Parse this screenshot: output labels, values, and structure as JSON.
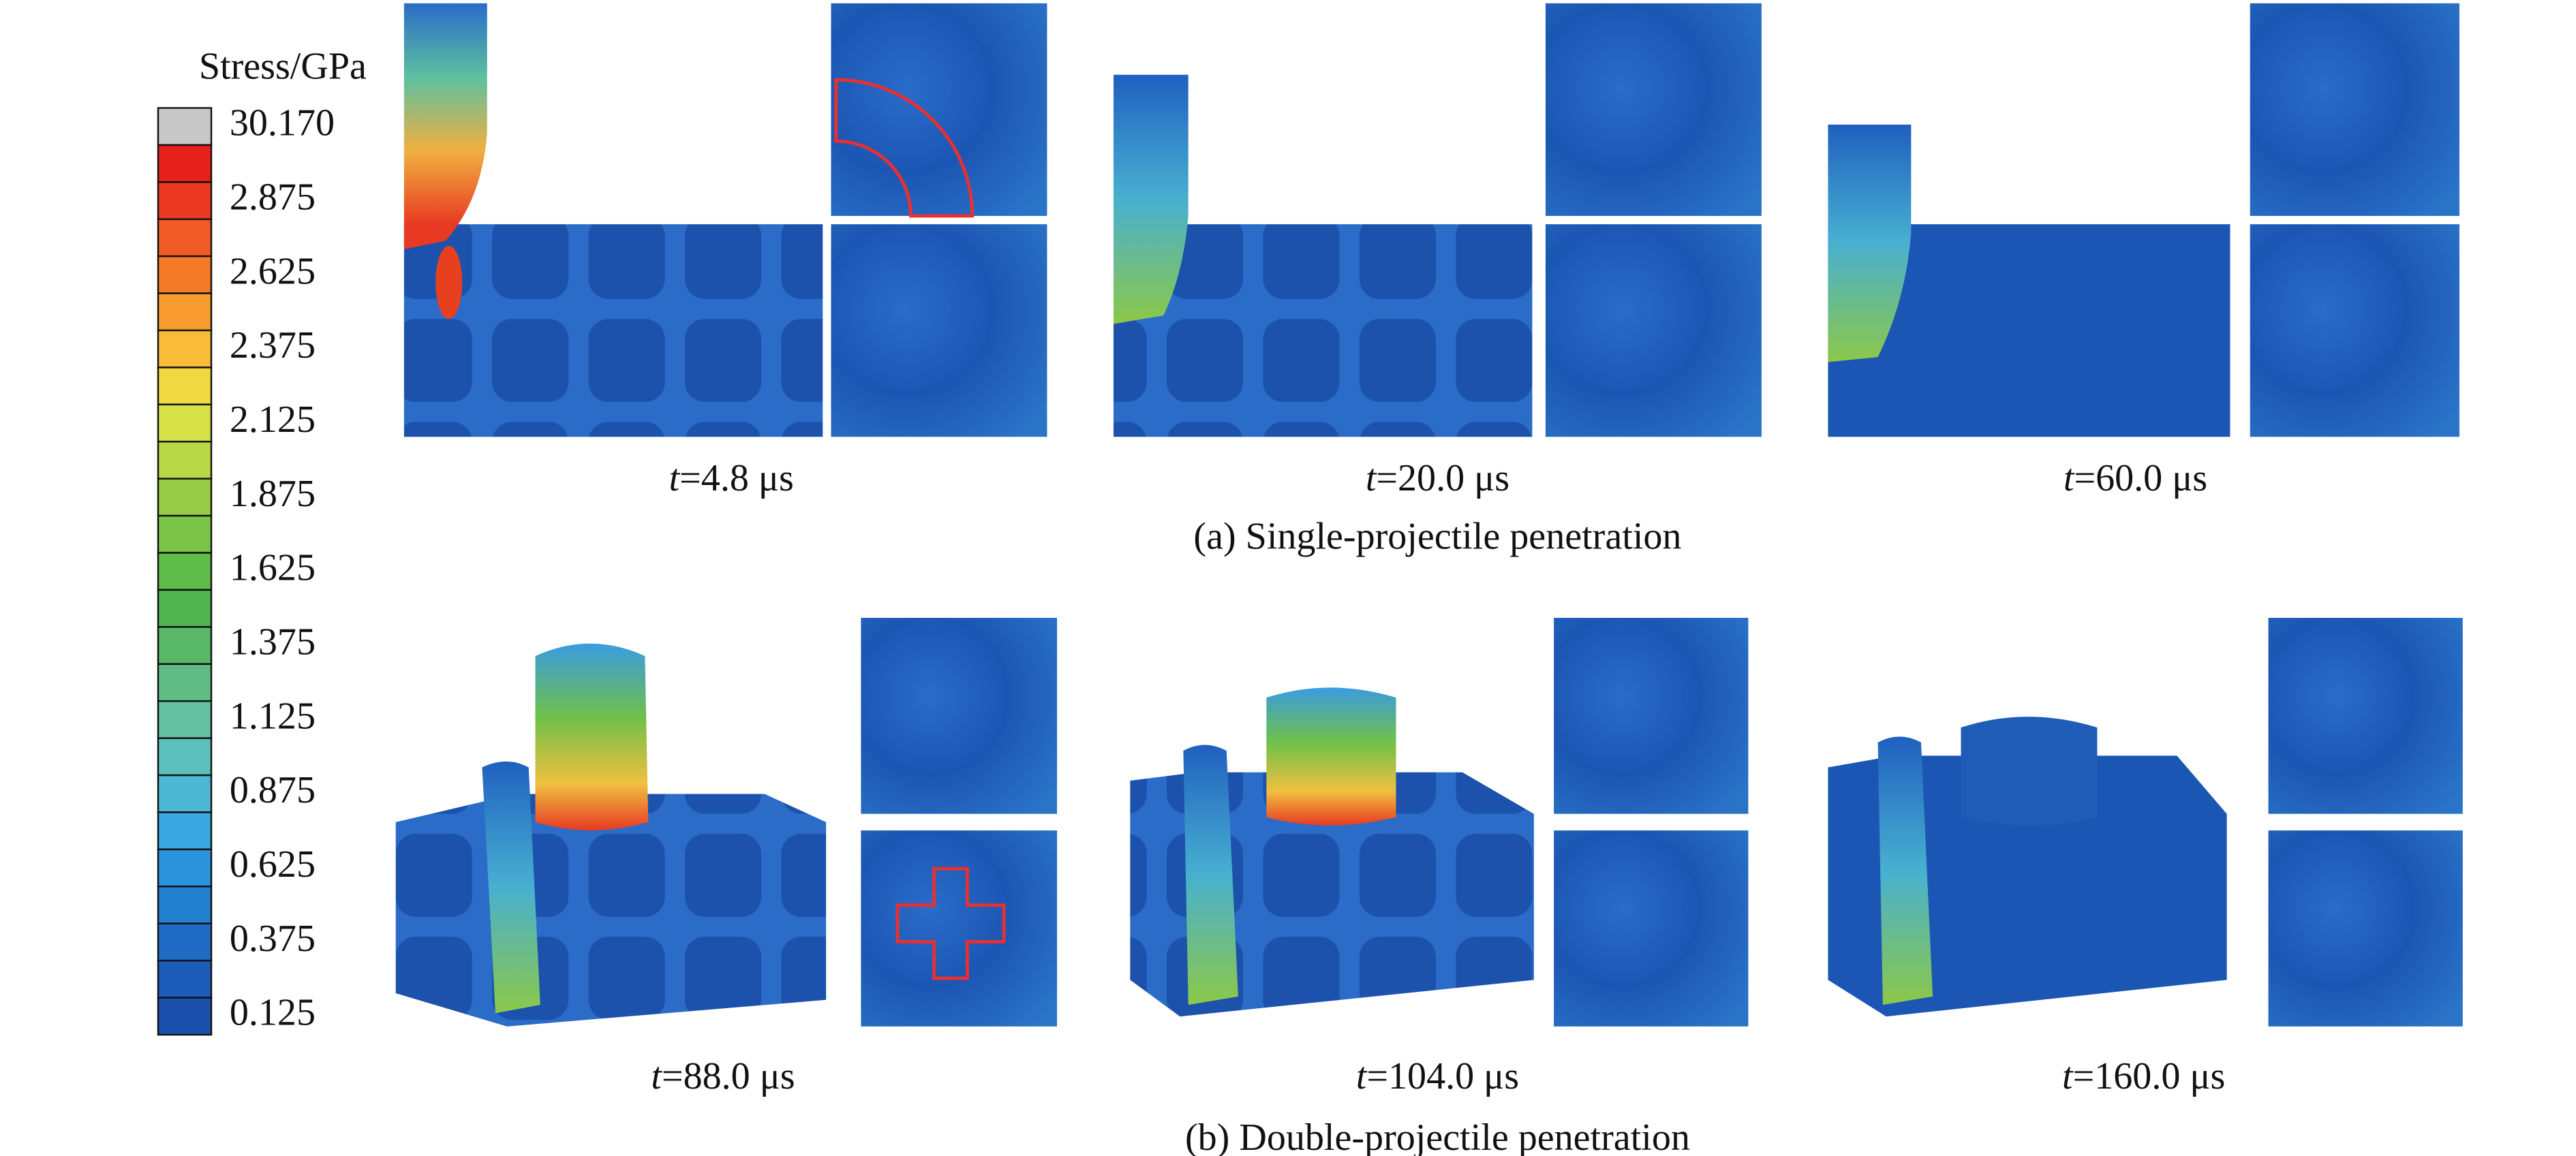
{
  "colorbar": {
    "title": "Stress/GPa",
    "labels": [
      "30.170",
      "2.875",
      "2.625",
      "2.375",
      "2.125",
      "1.875",
      "1.625",
      "1.375",
      "1.125",
      "0.875",
      "0.625",
      "0.375",
      "0.125"
    ],
    "colors": [
      "#c8c8c8",
      "#e8201c",
      "#ec3a22",
      "#f05a26",
      "#f47a2a",
      "#f89c30",
      "#f8bc38",
      "#f0d840",
      "#d8e048",
      "#b8d848",
      "#98cc48",
      "#7cc448",
      "#60bc48",
      "#50b450",
      "#58b868",
      "#60bc84",
      "#64c0a0",
      "#5cc0bc",
      "#4cb8d4",
      "#3aa8e0",
      "#2c94dc",
      "#2480d0",
      "#206cc4",
      "#1c5cb8",
      "#1a50ac"
    ]
  },
  "panels": [
    {
      "caption": "(a) Single-projectile penetration",
      "frames": [
        {
          "var": "t",
          "time": "=4.8 μs"
        },
        {
          "var": "t",
          "time": "=20.0 μs"
        },
        {
          "var": "t",
          "time": "=60.0 μs"
        }
      ]
    },
    {
      "caption": "(b) Double-projectile penetration",
      "frames": [
        {
          "var": "t",
          "time": "=88.0 μs"
        },
        {
          "var": "t",
          "time": "=104.0 μs"
        },
        {
          "var": "t",
          "time": "=160.0 μs"
        }
      ]
    }
  ]
}
